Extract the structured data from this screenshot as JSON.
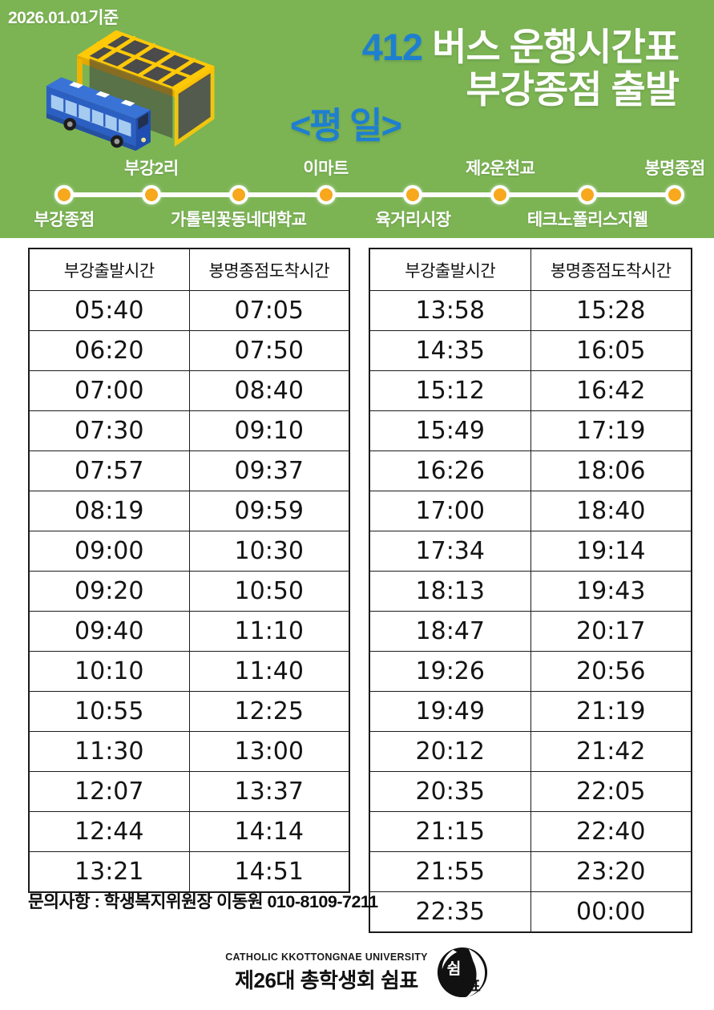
{
  "header": {
    "date_note": "2026.01.01기준",
    "route_number": "412",
    "title": "버스 운행시간표",
    "subtitle": "부강종점 출발",
    "weekday_label": "<평 일>"
  },
  "colors": {
    "background_green": "#7CB454",
    "accent_blue": "#1E7FD0",
    "stop_dot_orange": "#F7A81C"
  },
  "route": {
    "stops": [
      {
        "name": "부강종점",
        "label_position": "below"
      },
      {
        "name": "부강2리",
        "label_position": "above"
      },
      {
        "name": "가톨릭꽃동네대학교",
        "label_position": "below"
      },
      {
        "name": "이마트",
        "label_position": "above"
      },
      {
        "name": "육거리시장",
        "label_position": "below"
      },
      {
        "name": "제2운천교",
        "label_position": "above"
      },
      {
        "name": "테크노폴리스지웰",
        "label_position": "below"
      },
      {
        "name": "봉명종점",
        "label_position": "above"
      }
    ]
  },
  "tables": {
    "headers": [
      "부강출발시간",
      "봉명종점도착시간"
    ],
    "left_rows": [
      [
        "05:40",
        "07:05"
      ],
      [
        "06:20",
        "07:50"
      ],
      [
        "07:00",
        "08:40"
      ],
      [
        "07:30",
        "09:10"
      ],
      [
        "07:57",
        "09:37"
      ],
      [
        "08:19",
        "09:59"
      ],
      [
        "09:00",
        "10:30"
      ],
      [
        "09:20",
        "10:50"
      ],
      [
        "09:40",
        "11:10"
      ],
      [
        "10:10",
        "11:40"
      ],
      [
        "10:55",
        "12:25"
      ],
      [
        "11:30",
        "13:00"
      ],
      [
        "12:07",
        "13:37"
      ],
      [
        "12:44",
        "14:14"
      ],
      [
        "13:21",
        "14:51"
      ]
    ],
    "right_rows": [
      [
        "13:58",
        "15:28"
      ],
      [
        "14:35",
        "16:05"
      ],
      [
        "15:12",
        "16:42"
      ],
      [
        "15:49",
        "17:19"
      ],
      [
        "16:26",
        "18:06"
      ],
      [
        "17:00",
        "18:40"
      ],
      [
        "17:34",
        "19:14"
      ],
      [
        "18:13",
        "19:43"
      ],
      [
        "18:47",
        "20:17"
      ],
      [
        "19:26",
        "20:56"
      ],
      [
        "19:49",
        "21:19"
      ],
      [
        "20:12",
        "21:42"
      ],
      [
        "20:35",
        "22:05"
      ],
      [
        "21:15",
        "22:40"
      ],
      [
        "21:55",
        "23:20"
      ],
      [
        "22:35",
        "00:00"
      ]
    ]
  },
  "contact": "문의사항 : 학생복지위원장 이동원 010-8109-7211",
  "footer": {
    "university": "CATHOLIC KKOTTONGNAE UNIVERSITY",
    "council": "제26대 총학생회 쉼표",
    "logo_char_top": "쉼",
    "logo_char_bottom": "표"
  }
}
